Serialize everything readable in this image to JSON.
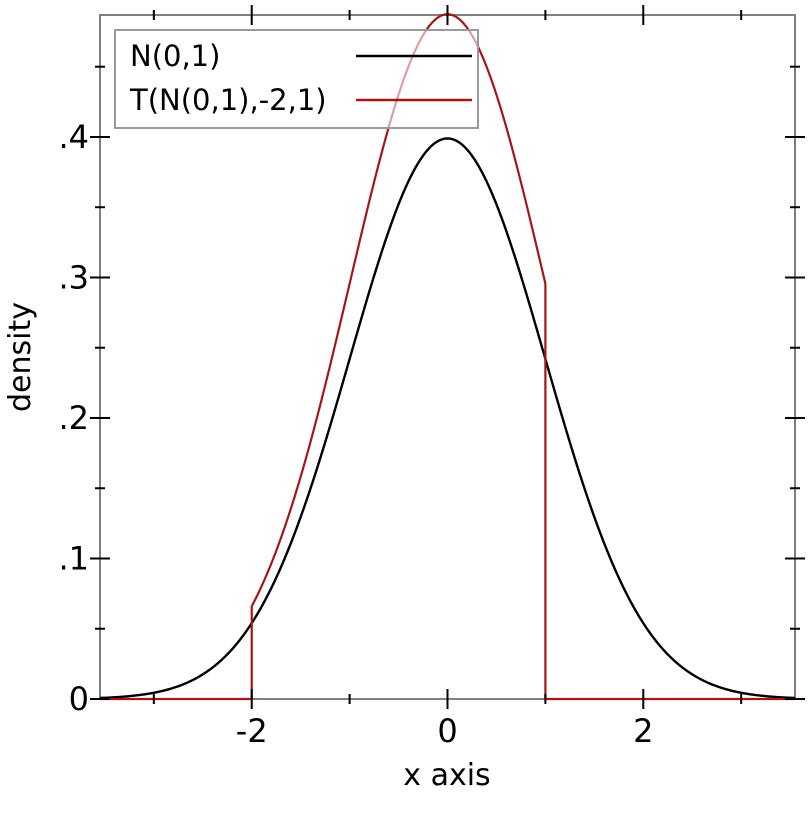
{
  "chart_data": {
    "type": "line",
    "title": "",
    "xlabel": "x axis",
    "ylabel": "density",
    "xlim": [
      -3.55,
      3.55
    ],
    "ylim": [
      0,
      0.4868
    ],
    "grid": false,
    "legend_position": "top-left",
    "x_ticks": {
      "major": [
        {
          "v": -2,
          "label": "-2"
        },
        {
          "v": 0,
          "label": "0"
        },
        {
          "v": 2,
          "label": "2"
        }
      ],
      "minor": [
        -3,
        -1,
        1,
        3
      ]
    },
    "y_ticks": {
      "major": [
        {
          "v": 0,
          "label": "0"
        },
        {
          "v": 0.1,
          "label": ".1"
        },
        {
          "v": 0.2,
          "label": ".2"
        },
        {
          "v": 0.3,
          "label": ".3"
        },
        {
          "v": 0.4,
          "label": ".4"
        }
      ],
      "minor": [
        0.05,
        0.15,
        0.25,
        0.35,
        0.45
      ]
    },
    "series": [
      {
        "name": "N(0,1)",
        "type": "normal_pdf",
        "mu": 0,
        "sigma": 1,
        "color": "#000000",
        "peak_density": 0.3989,
        "sample_points": {
          "x": [
            -3.5,
            -3,
            -2.5,
            -2,
            -1.5,
            -1,
            -0.5,
            0,
            0.5,
            1,
            1.5,
            2,
            2.5,
            3,
            3.5
          ],
          "y": [
            0.0009,
            0.0044,
            0.0175,
            0.054,
            0.1295,
            0.242,
            0.3521,
            0.3989,
            0.3521,
            0.242,
            0.1295,
            0.054,
            0.0175,
            0.0044,
            0.0009
          ]
        }
      },
      {
        "name": "T(N(0,1),-2,1)",
        "type": "truncated_normal_pdf",
        "mu": 0,
        "sigma": 1,
        "lower": -2,
        "upper": 1,
        "normalization": 0.8186,
        "color": "#a51616",
        "peak_density": 0.4873,
        "density_at_lower": 0.066,
        "density_at_upper": 0.2956,
        "sample_points": {
          "x": [
            -2,
            -1.5,
            -1,
            -0.5,
            0,
            0.5,
            1
          ],
          "y": [
            0.066,
            0.1582,
            0.2956,
            0.4301,
            0.4873,
            0.4301,
            0.2956
          ]
        }
      }
    ],
    "legend": {
      "entries": [
        "N(0,1)",
        "T(N(0,1),-2,1)"
      ]
    }
  },
  "style": {
    "frame_color": "#808080",
    "tick_color": "#000000",
    "text_color": "#000000",
    "legend_border_color": "#999999",
    "legend_bg": "#ffffff",
    "legend_bg_opacity": 0.6
  }
}
